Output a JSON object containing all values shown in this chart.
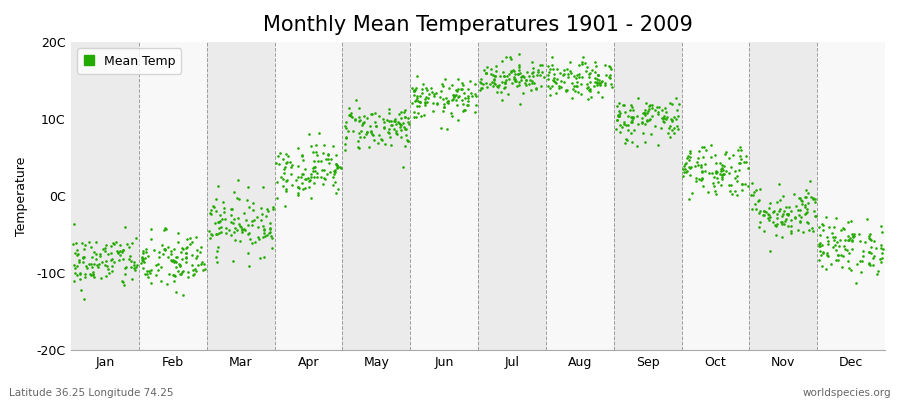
{
  "title": "Monthly Mean Temperatures 1901 - 2009",
  "ylabel": "Temperature",
  "xlabel": "",
  "subtitle_left": "Latitude 36.25 Longitude 74.25",
  "subtitle_right": "worldspecies.org",
  "legend_label": "Mean Temp",
  "dot_color": "#22AA00",
  "bg_color": "#FFFFFF",
  "plot_bg_color_odd": "#EBEBEB",
  "plot_bg_color_even": "#F8F8F8",
  "ylim": [
    -20,
    20
  ],
  "yticks": [
    -20,
    -10,
    0,
    10,
    20
  ],
  "ytick_labels": [
    "-20C",
    "-10C",
    "0C",
    "10C",
    "20C"
  ],
  "months": [
    "Jan",
    "Feb",
    "Mar",
    "Apr",
    "May",
    "Jun",
    "Jul",
    "Aug",
    "Sep",
    "Oct",
    "Nov",
    "Dec"
  ],
  "month_means": [
    -8.5,
    -8.5,
    -3.5,
    3.5,
    9.0,
    12.5,
    15.5,
    15.0,
    10.0,
    3.5,
    -2.0,
    -6.5
  ],
  "month_stds": [
    1.8,
    2.0,
    2.0,
    1.8,
    1.5,
    1.3,
    1.2,
    1.2,
    1.5,
    1.8,
    1.8,
    1.8
  ],
  "n_years": 109,
  "dot_size": 3.5,
  "dot_alpha": 1.0,
  "title_fontsize": 15,
  "label_fontsize": 9,
  "tick_fontsize": 9,
  "dashed_color": "#888888",
  "legend_marker_size": 7
}
